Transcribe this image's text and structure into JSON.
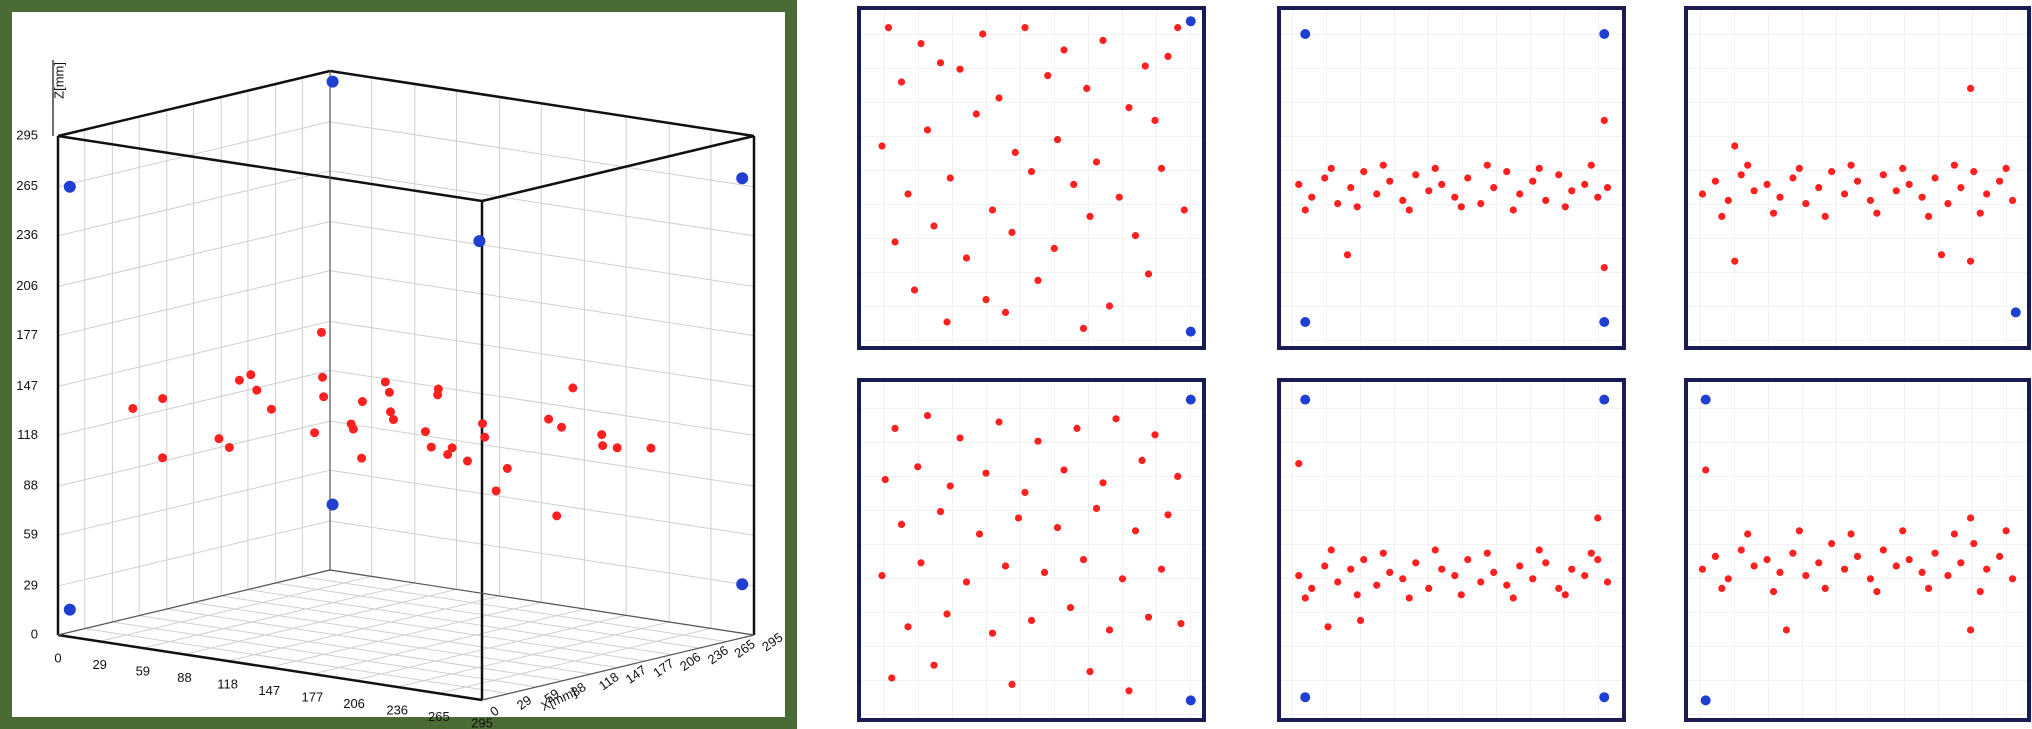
{
  "chart_data": [
    {
      "type": "scatter3d",
      "zlabel": "Z[mm]",
      "ylabel": "X[mm]",
      "xlim": [
        0,
        295
      ],
      "ylim": [
        0,
        295
      ],
      "zlim": [
        0,
        295
      ],
      "xticks": [
        0,
        29,
        59,
        88,
        118,
        147,
        177,
        206,
        236,
        265,
        295
      ],
      "yticks": [
        0,
        29,
        59,
        88,
        118,
        147,
        177,
        206,
        236,
        265,
        295
      ],
      "zticks": [
        0,
        29,
        59,
        88,
        118,
        147,
        177,
        206,
        236,
        265,
        295
      ],
      "series": [
        {
          "color": "#ff2020",
          "x": [
            10,
            30,
            50,
            70,
            90,
            110,
            130,
            150,
            170,
            190,
            210,
            230,
            250,
            270,
            290,
            20,
            45,
            75,
            100,
            125,
            160,
            185,
            215,
            240,
            265,
            35,
            60,
            85,
            115,
            140,
            175,
            200,
            225,
            255,
            280,
            15,
            55,
            95,
            135,
            180
          ],
          "y": [
            200,
            150,
            240,
            100,
            180,
            60,
            220,
            130,
            90,
            250,
            160,
            40,
            200,
            120,
            80,
            50,
            260,
            170,
            30,
            210,
            110,
            270,
            140,
            70,
            230,
            120,
            20,
            280,
            150,
            60,
            190,
            100,
            240,
            30,
            170,
            90,
            200,
            140,
            250,
            80
          ],
          "z": [
            120,
            135,
            100,
            150,
            110,
            140,
            95,
            130,
            160,
            115,
            105,
            145,
            125,
            90,
            155,
            130,
            110,
            140,
            120,
            100,
            150,
            135,
            95,
            125,
            115,
            105,
            145,
            120,
            100,
            130,
            115,
            155,
            110,
            140,
            125,
            95,
            160,
            135,
            110,
            145
          ]
        },
        {
          "color": "#1f3fd0",
          "x": [
            5,
            5,
            5,
            5,
            290,
            290,
            290
          ],
          "y": [
            5,
            5,
            290,
            290,
            290,
            290,
            5
          ],
          "z": [
            265,
            15,
            290,
            40,
            270,
            30,
            270
          ]
        }
      ]
    },
    {
      "type": "scatter",
      "xlim": [
        0,
        100
      ],
      "ylim": [
        0,
        100
      ],
      "series": [
        {
          "color": "#ff2020",
          "x": [
            6,
            16,
            22,
            35,
            48,
            60,
            72,
            85,
            95,
            10,
            28,
            40,
            55,
            67,
            80,
            92,
            4,
            18,
            33,
            45,
            58,
            70,
            88,
            12,
            25,
            38,
            50,
            63,
            77,
            90,
            8,
            20,
            30,
            44,
            57,
            68,
            82,
            97,
            14,
            36,
            52,
            74,
            86,
            24,
            42,
            66
          ],
          "y": [
            97,
            92,
            86,
            95,
            97,
            90,
            93,
            85,
            97,
            80,
            84,
            75,
            82,
            78,
            72,
            88,
            60,
            65,
            70,
            58,
            62,
            55,
            68,
            45,
            50,
            40,
            52,
            48,
            44,
            53,
            30,
            35,
            25,
            33,
            28,
            38,
            32,
            40,
            15,
            12,
            18,
            10,
            20,
            5,
            8,
            3
          ]
        },
        {
          "color": "#1f3fd0",
          "x": [
            99,
            99
          ],
          "y": [
            99,
            2
          ]
        }
      ]
    },
    {
      "type": "scatter",
      "xlim": [
        0,
        100
      ],
      "ylim": [
        0,
        100
      ],
      "series": [
        {
          "color": "#ff2020",
          "x": [
            3,
            7,
            11,
            15,
            19,
            23,
            27,
            31,
            35,
            39,
            43,
            47,
            51,
            55,
            59,
            63,
            67,
            71,
            75,
            79,
            83,
            87,
            91,
            95,
            98,
            5,
            13,
            21,
            29,
            37,
            45,
            53,
            61,
            69,
            77,
            85,
            93,
            97,
            97,
            18
          ],
          "y": [
            48,
            44,
            50,
            42,
            47,
            52,
            45,
            49,
            43,
            51,
            46,
            48,
            44,
            50,
            42,
            47,
            52,
            45,
            49,
            43,
            51,
            46,
            48,
            44,
            47,
            40,
            53,
            41,
            54,
            40,
            53,
            41,
            54,
            40,
            53,
            41,
            54,
            68,
            22,
            26
          ]
        },
        {
          "color": "#1f3fd0",
          "x": [
            5,
            97,
            5,
            97
          ],
          "y": [
            95,
            95,
            5,
            5
          ]
        }
      ]
    },
    {
      "type": "scatter",
      "xlim": [
        0,
        100
      ],
      "ylim": [
        0,
        100
      ],
      "series": [
        {
          "color": "#ff2020",
          "x": [
            2,
            6,
            10,
            14,
            18,
            22,
            26,
            30,
            34,
            38,
            42,
            46,
            50,
            54,
            58,
            62,
            66,
            70,
            74,
            78,
            82,
            86,
            90,
            94,
            98,
            8,
            16,
            24,
            32,
            40,
            48,
            56,
            64,
            72,
            80,
            88,
            96,
            85,
            12,
            12,
            76,
            85
          ],
          "y": [
            45,
            49,
            43,
            51,
            46,
            48,
            44,
            50,
            42,
            47,
            52,
            45,
            49,
            43,
            51,
            46,
            48,
            44,
            50,
            42,
            47,
            52,
            45,
            49,
            43,
            38,
            54,
            39,
            53,
            38,
            54,
            39,
            53,
            38,
            54,
            39,
            53,
            78,
            60,
            24,
            26,
            24
          ]
        },
        {
          "color": "#1f3fd0",
          "x": [
            99
          ],
          "y": [
            8
          ]
        }
      ]
    },
    {
      "type": "scatter",
      "xlim": [
        0,
        100
      ],
      "ylim": [
        0,
        100
      ],
      "series": [
        {
          "color": "#ff2020",
          "x": [
            8,
            18,
            28,
            40,
            52,
            64,
            76,
            88,
            5,
            15,
            25,
            36,
            48,
            60,
            72,
            84,
            95,
            10,
            22,
            34,
            46,
            58,
            70,
            82,
            92,
            4,
            16,
            30,
            42,
            54,
            66,
            78,
            90,
            12,
            24,
            38,
            50,
            62,
            74,
            86,
            96,
            7,
            20,
            44,
            68,
            80
          ],
          "y": [
            88,
            92,
            85,
            90,
            84,
            88,
            91,
            86,
            72,
            76,
            70,
            74,
            68,
            75,
            71,
            78,
            73,
            58,
            62,
            55,
            60,
            57,
            63,
            56,
            61,
            42,
            46,
            40,
            45,
            43,
            47,
            41,
            44,
            26,
            30,
            24,
            28,
            32,
            25,
            29,
            27,
            10,
            14,
            8,
            12,
            6
          ]
        },
        {
          "color": "#1f3fd0",
          "x": [
            99,
            99
          ],
          "y": [
            97,
            3
          ]
        }
      ]
    },
    {
      "type": "scatter",
      "xlim": [
        0,
        100
      ],
      "ylim": [
        0,
        100
      ],
      "series": [
        {
          "color": "#ff2020",
          "x": [
            3,
            7,
            11,
            15,
            19,
            23,
            27,
            31,
            35,
            39,
            43,
            47,
            51,
            55,
            59,
            63,
            67,
            71,
            75,
            79,
            83,
            87,
            91,
            95,
            98,
            5,
            13,
            21,
            29,
            37,
            45,
            53,
            61,
            69,
            77,
            85,
            93,
            3,
            95,
            12,
            22
          ],
          "y": [
            42,
            38,
            45,
            40,
            44,
            47,
            39,
            43,
            41,
            46,
            38,
            44,
            42,
            47,
            40,
            43,
            39,
            45,
            41,
            46,
            38,
            44,
            42,
            47,
            40,
            35,
            50,
            36,
            49,
            35,
            50,
            36,
            49,
            35,
            50,
            36,
            49,
            77,
            60,
            26,
            28
          ]
        },
        {
          "color": "#1f3fd0",
          "x": [
            5,
            97,
            5,
            97
          ],
          "y": [
            97,
            97,
            4,
            4
          ]
        }
      ]
    },
    {
      "type": "scatter",
      "xlim": [
        0,
        100
      ],
      "ylim": [
        0,
        100
      ],
      "series": [
        {
          "color": "#ff2020",
          "x": [
            2,
            6,
            10,
            14,
            18,
            22,
            26,
            30,
            34,
            38,
            42,
            46,
            50,
            54,
            58,
            62,
            66,
            70,
            74,
            78,
            82,
            86,
            90,
            94,
            98,
            8,
            16,
            24,
            32,
            40,
            48,
            56,
            64,
            72,
            80,
            88,
            96,
            3,
            85,
            85,
            28
          ],
          "y": [
            44,
            48,
            41,
            50,
            45,
            47,
            43,
            49,
            42,
            46,
            52,
            44,
            48,
            41,
            50,
            45,
            47,
            43,
            49,
            42,
            46,
            52,
            44,
            48,
            41,
            38,
            55,
            37,
            56,
            38,
            55,
            37,
            56,
            38,
            55,
            37,
            56,
            75,
            60,
            25,
            25
          ]
        },
        {
          "color": "#1f3fd0",
          "x": [
            3,
            3
          ],
          "y": [
            97,
            3
          ]
        }
      ]
    }
  ]
}
